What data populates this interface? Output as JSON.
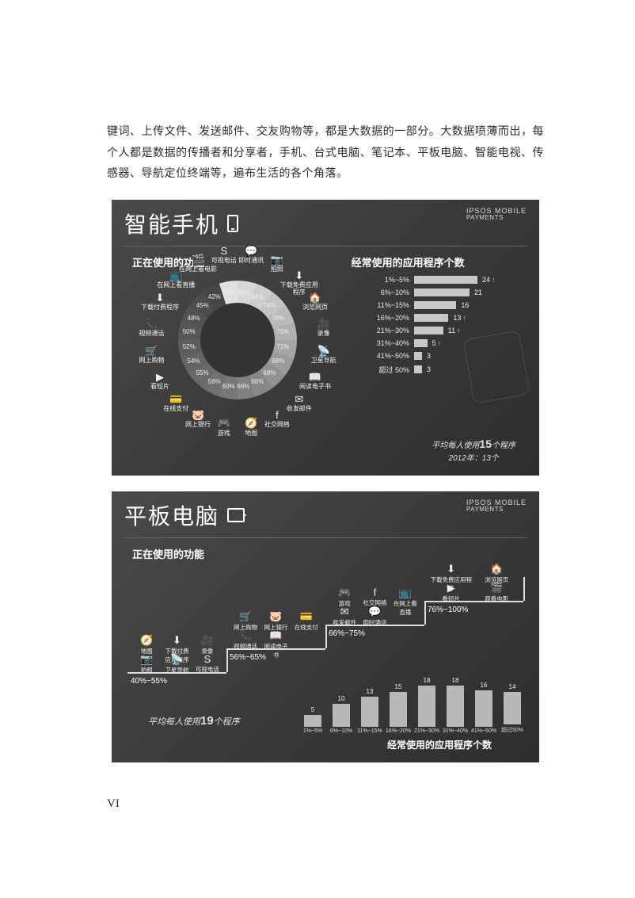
{
  "body_text": "键词、上传文件、发送邮件、交友购物等，都是大数据的一部分。大数据喷薄而出，每个人都是数据的传播者和分享者，手机、台式电脑、笔记本、平板电脑、智能电视、传感器、导航定位终端等，遍布生活的各个角落。",
  "brand": {
    "line1": "IPSOS MOBILE",
    "line2": "PAYMENTS"
  },
  "colors": {
    "panel_bg": "#3a3a3a",
    "bar_fill": "#c8c8c8",
    "text": "#f0f0f0",
    "donut_hole": "#333333"
  },
  "smartphone": {
    "title": "智能手机",
    "sub_left": "正在使用的功能",
    "sub_right": "经常使用的应用程序个数",
    "donut": {
      "segments": [
        {
          "label": "即时通讯",
          "pct": 84,
          "icon": "💬",
          "color": "#d8d8d8"
        },
        {
          "label": "拍照",
          "pct": 84,
          "icon": "📷",
          "color": "#cecece"
        },
        {
          "label": "下载免费应用程序",
          "pct": 78,
          "icon": "⬇",
          "color": "#c4c4c4"
        },
        {
          "label": "浏览网页",
          "pct": 78,
          "icon": "🏠",
          "color": "#bababa"
        },
        {
          "label": "录像",
          "pct": 75,
          "icon": "🎥",
          "color": "#b0b0b0"
        },
        {
          "label": "卫星导航",
          "pct": 71,
          "icon": "📡",
          "color": "#a6a6a6"
        },
        {
          "label": "阅读电子书",
          "pct": 68,
          "icon": "📖",
          "color": "#9c9c9c"
        },
        {
          "label": "收发邮件",
          "pct": 68,
          "icon": "✉",
          "color": "#929292"
        },
        {
          "label": "社交网络",
          "pct": 66,
          "icon": "f",
          "color": "#888888"
        },
        {
          "label": "地图",
          "pct": 66,
          "icon": "🧭",
          "color": "#808080"
        },
        {
          "label": "游戏",
          "pct": 60,
          "icon": "🎮",
          "color": "#787878"
        },
        {
          "label": "网上银行",
          "pct": 56,
          "icon": "🐷",
          "color": "#707070"
        },
        {
          "label": "在线支付",
          "pct": 55,
          "icon": "💳",
          "color": "#6a6a6a"
        },
        {
          "label": "看短片",
          "pct": 54,
          "icon": "▶",
          "color": "#646464"
        },
        {
          "label": "网上购物",
          "pct": 52,
          "icon": "🛒",
          "color": "#5e5e5e"
        },
        {
          "label": "视频通话",
          "pct": 50,
          "icon": "📞",
          "color": "#585858"
        },
        {
          "label": "下载付费程序",
          "pct": 48,
          "icon": "⬇",
          "color": "#525252"
        },
        {
          "label": "在网上看直播",
          "pct": 45,
          "icon": "📺",
          "color": "#4c4c4c"
        },
        {
          "label": "在网上看电影",
          "pct": 42,
          "icon": "🎬",
          "color": "#464646"
        },
        {
          "label": "可视电话",
          "pct": 85,
          "icon": "S",
          "color": "#e0e0e0"
        }
      ]
    },
    "bars": {
      "max": 24,
      "rows": [
        {
          "cat": "1%~5%",
          "val": 24,
          "arrow": "↑"
        },
        {
          "cat": "6%~10%",
          "val": 21,
          "arrow": ""
        },
        {
          "cat": "11%~15%",
          "val": 16,
          "arrow": ""
        },
        {
          "cat": "16%~20%",
          "val": 13,
          "arrow": "↑"
        },
        {
          "cat": "21%~30%",
          "val": 11,
          "arrow": "↑"
        },
        {
          "cat": "31%~40%",
          "val": 5,
          "arrow": "↑"
        },
        {
          "cat": "41%~50%",
          "val": 3,
          "arrow": ""
        },
        {
          "cat": "超过 50%",
          "val": 3,
          "arrow": ""
        }
      ]
    },
    "avg": {
      "line1_pre": "平均每人使用",
      "line1_num": "15",
      "line1_post": "个程序",
      "line2": "2012年：13个"
    }
  },
  "tablet": {
    "title": "平板电脑",
    "sub_left": "正在使用的功能",
    "sub_bottom": "经常使用的应用程序个数",
    "steps": [
      {
        "range": "40%~55%",
        "items": [
          {
            "label": "地图",
            "icon": "🧭"
          },
          {
            "label": "下载付费应用程序",
            "icon": "⬇"
          },
          {
            "label": "录像",
            "icon": "🎥"
          },
          {
            "label": "拍照",
            "icon": "📷"
          },
          {
            "label": "卫星导航",
            "icon": "📡"
          },
          {
            "label": "可视电话",
            "icon": "S"
          }
        ]
      },
      {
        "range": "56%~65%",
        "items": [
          {
            "label": "网上购物",
            "icon": "🛒"
          },
          {
            "label": "网上银行",
            "icon": "🐷"
          },
          {
            "label": "在线支付",
            "icon": "💳"
          },
          {
            "label": "视频通话",
            "icon": "📞"
          },
          {
            "label": "阅读电子书",
            "icon": "📖"
          }
        ]
      },
      {
        "range": "66%~75%",
        "items": [
          {
            "label": "游戏",
            "icon": "🎮"
          },
          {
            "label": "社交网络",
            "icon": "f"
          },
          {
            "label": "在网上看直播",
            "icon": "📺"
          },
          {
            "label": "收发邮件",
            "icon": "✉"
          },
          {
            "label": "即时通讯",
            "icon": "💬"
          }
        ]
      },
      {
        "range": "76%~100%",
        "items": [
          {
            "label": "下载免费应用程序",
            "icon": "⬇"
          },
          {
            "label": "浏览网页",
            "icon": "🏠"
          },
          {
            "label": "看短片",
            "icon": "▶"
          },
          {
            "label": "观看电影",
            "icon": "🎬"
          }
        ]
      }
    ],
    "bars": {
      "max": 18,
      "rows": [
        {
          "cat": "1%~5%",
          "val": 5
        },
        {
          "cat": "6%~10%",
          "val": 10
        },
        {
          "cat": "11%~15%",
          "val": 13
        },
        {
          "cat": "16%~20%",
          "val": 15
        },
        {
          "cat": "21%~30%",
          "val": 18
        },
        {
          "cat": "31%~40%",
          "val": 18
        },
        {
          "cat": "41%~50%",
          "val": 16
        },
        {
          "cat": "超过50%",
          "val": 14
        }
      ]
    },
    "avg": {
      "pre": "平均每人使用",
      "num": "19",
      "post": "个程序"
    }
  },
  "page_number": "VI"
}
